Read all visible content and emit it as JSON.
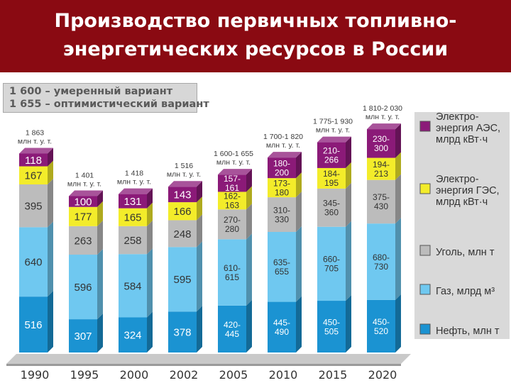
{
  "title": {
    "line1": "Производство первичных топливно-",
    "line2": "энергетических ресурсов в России"
  },
  "variants": {
    "moderate": "1 600 – умеренный вариант",
    "optimistic": "1 655 – оптимистический вариант"
  },
  "colors": {
    "title_bg": "#8a0a12",
    "nuclear": "#8b1a78",
    "hydro": "#f3ec2a",
    "coal": "#bcbcbc",
    "gas": "#6fc8f0",
    "oil": "#1b93d2"
  },
  "chart_data": {
    "type": "bar",
    "stacked": true,
    "categories": [
      "1990",
      "1995",
      "2000",
      "2002",
      "2005",
      "2010",
      "2015",
      "2020"
    ],
    "totals": [
      [
        "1 863",
        "млн т. у. т."
      ],
      [
        "1 401",
        "млн т. у. т."
      ],
      [
        "1 418",
        "млн т. у. т."
      ],
      [
        "1 516",
        "млн т. у. т."
      ],
      [
        "1 600-1 655",
        "млн т. у. т."
      ],
      [
        "1 700-1 820",
        "млн т. у. т."
      ],
      [
        "1 775-1 930",
        "млн т. у. т."
      ],
      [
        "1 810-2 030",
        "млн т. у. т."
      ]
    ],
    "series": [
      {
        "name": "Нефть, млн т",
        "key": "oil",
        "labels": [
          [
            "516"
          ],
          [
            "307"
          ],
          [
            "324"
          ],
          [
            "378"
          ],
          [
            "420-",
            "445"
          ],
          [
            "445-",
            "490"
          ],
          [
            "450-",
            "505"
          ],
          [
            "450-",
            "520"
          ]
        ],
        "values": [
          516,
          307,
          324,
          378,
          432.5,
          467.5,
          477.5,
          485
        ]
      },
      {
        "name": "Газ, млрд м³",
        "key": "gas",
        "labels": [
          [
            "640"
          ],
          [
            "596"
          ],
          [
            "584"
          ],
          [
            "595"
          ],
          [
            "610-",
            "615"
          ],
          [
            "635-",
            "655"
          ],
          [
            "660-",
            "705"
          ],
          [
            "680-",
            "730"
          ]
        ],
        "values": [
          640,
          596,
          584,
          595,
          612.5,
          645,
          682.5,
          705
        ]
      },
      {
        "name": "Уголь, млн т",
        "key": "coal",
        "labels": [
          [
            "395"
          ],
          [
            "263"
          ],
          [
            "258"
          ],
          [
            "248"
          ],
          [
            "270-",
            "280"
          ],
          [
            "310-",
            "330"
          ],
          [
            "345-",
            "360"
          ],
          [
            "375-",
            "430"
          ]
        ],
        "values": [
          395,
          263,
          258,
          248,
          275,
          320,
          352.5,
          402.5
        ]
      },
      {
        "name": "Электро-энергия ГЭС, млрд кВт·ч",
        "key": "hydro",
        "labels": [
          [
            "167"
          ],
          [
            "177"
          ],
          [
            "165"
          ],
          [
            "166"
          ],
          [
            "162-",
            "163"
          ],
          [
            "173-",
            "180"
          ],
          [
            "184-",
            "195"
          ],
          [
            "194-",
            "213"
          ]
        ],
        "values": [
          167,
          177,
          165,
          166,
          162.5,
          176.5,
          189.5,
          203.5
        ]
      },
      {
        "name": "Электро-энергия АЭС, млрд кВт·ч",
        "key": "nuclear",
        "labels": [
          [
            "118"
          ],
          [
            "100"
          ],
          [
            "131"
          ],
          [
            "143"
          ],
          [
            "157-",
            "161"
          ],
          [
            "180-",
            "200"
          ],
          [
            "210-",
            "266"
          ],
          [
            "230-",
            "300"
          ]
        ],
        "values": [
          118,
          100,
          131,
          143,
          159,
          190,
          238,
          265
        ]
      }
    ],
    "legend": [
      {
        "key": "nuclear",
        "lines": [
          "Электро-",
          "энергия АЭС,",
          "млрд кВт·ч"
        ]
      },
      {
        "key": "hydro",
        "lines": [
          "Электро-",
          "энергия ГЭС,",
          "млрд кВт·ч"
        ]
      },
      {
        "key": "coal",
        "lines": [
          "Уголь, млн т"
        ]
      },
      {
        "key": "gas",
        "lines": [
          "Газ, млрд м³"
        ]
      },
      {
        "key": "oil",
        "lines": [
          "Нефть, млн т"
        ]
      }
    ],
    "legend_position": "right",
    "grid": false
  }
}
